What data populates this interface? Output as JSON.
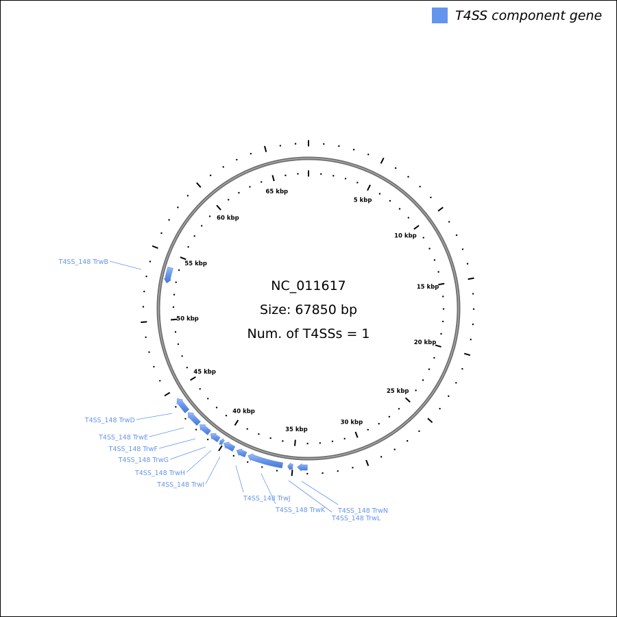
{
  "legend": {
    "label": "T4SS component gene",
    "color": "#6495ed"
  },
  "center": {
    "accession": "NC_011617",
    "size_text": "Size: 67850 bp",
    "t4ss_text": "Num. of T4SSs = 1"
  },
  "genome_length_bp": 67850,
  "ticks": {
    "major_bp": 5000,
    "minor_bp": 1000
  },
  "kbp_labels": [
    "5 kbp",
    "10 kbp",
    "15 kbp",
    "20 kbp",
    "25 kbp",
    "30 kbp",
    "35 kbp",
    "40 kbp",
    "45 kbp",
    "50 kbp",
    "55 kbp",
    "60 kbp",
    "65 kbp"
  ],
  "ring_color": "#808080",
  "genes": [
    {
      "label": "T4SS_148 TrwB",
      "start": 52800,
      "end": 54000,
      "strand": "-"
    },
    {
      "label": "T4SS_148 TrwD",
      "start": 43300,
      "end": 44400,
      "strand": "+"
    },
    {
      "label": "T4SS_148 TrwE",
      "start": 42150,
      "end": 43200,
      "strand": "+"
    },
    {
      "label": "T4SS_148 TrwF",
      "start": 41200,
      "end": 42050,
      "strand": "+"
    },
    {
      "label": "T4SS_148 TrwG",
      "start": 40400,
      "end": 41100,
      "strand": "+"
    },
    {
      "label": "T4SS_148 TrwH",
      "start": 40050,
      "end": 40300,
      "strand": "+"
    },
    {
      "label": "T4SS_148 TrwI",
      "start": 39200,
      "end": 40000,
      "strand": "+"
    },
    {
      "label": "T4SS_148 TrwJ",
      "start": 38300,
      "end": 39000,
      "strand": "+"
    },
    {
      "label": "T4SS_148 TrwK",
      "start": 35700,
      "end": 38150,
      "strand": "+"
    },
    {
      "label": "T4SS_148 TrwL",
      "start": 35000,
      "end": 35350,
      "strand": "+"
    },
    {
      "label": "T4SS_148 TrwN",
      "start": 34000,
      "end": 34700,
      "strand": "+"
    }
  ]
}
